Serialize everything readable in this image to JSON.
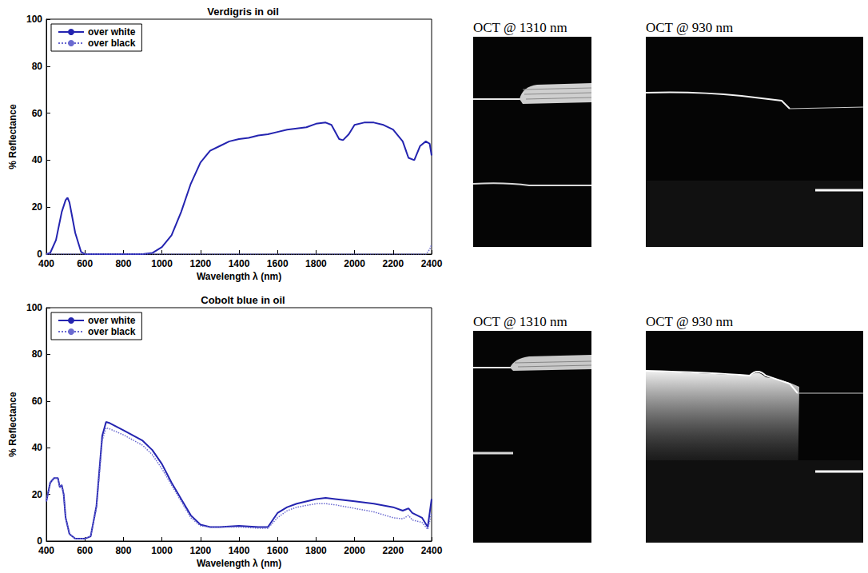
{
  "chart_data": [
    {
      "type": "line",
      "title": "Verdigris in oil",
      "x_label": "Wavelength λ (nm)",
      "y_label": "% Reflectance",
      "x": [
        400,
        420,
        450,
        480,
        500,
        510,
        520,
        550,
        580,
        600,
        700,
        800,
        900,
        950,
        1000,
        1050,
        1100,
        1150,
        1200,
        1250,
        1300,
        1350,
        1400,
        1450,
        1500,
        1550,
        1600,
        1650,
        1700,
        1750,
        1800,
        1850,
        1880,
        1920,
        1940,
        1970,
        2000,
        2050,
        2100,
        2150,
        2200,
        2250,
        2280,
        2310,
        2340,
        2370,
        2390,
        2400
      ],
      "series": [
        {
          "name": "over white",
          "color": "#2424b0",
          "line_style": "solid",
          "values": [
            0,
            0.5,
            6,
            18,
            23,
            24,
            22,
            9,
            1,
            0,
            0,
            0,
            0,
            0.5,
            3,
            8,
            18,
            30,
            39,
            44,
            46,
            48,
            49,
            49.5,
            50.5,
            51,
            52,
            53,
            53.5,
            54,
            55.5,
            56,
            55,
            49,
            48.5,
            51,
            55,
            56,
            56,
            55,
            53,
            48,
            41,
            40,
            46,
            48,
            47,
            42
          ]
        },
        {
          "name": "over black",
          "color": "#6a6ad0",
          "line_style": "dotted",
          "values": [
            0,
            0,
            0,
            0,
            0,
            0,
            0,
            0,
            0,
            0,
            0,
            0,
            0,
            0,
            0,
            0,
            0,
            0,
            0,
            0,
            0,
            0,
            0,
            0,
            0,
            0,
            0,
            0,
            0,
            0,
            0,
            0,
            0,
            0,
            0,
            0,
            0,
            0,
            0,
            0,
            0,
            0,
            0,
            0,
            0,
            0,
            2,
            4
          ]
        }
      ],
      "xlim": [
        400,
        2400
      ],
      "xticks": [
        400,
        600,
        800,
        1000,
        1200,
        1400,
        1600,
        1800,
        2000,
        2200,
        2400
      ],
      "ylim": [
        0,
        100
      ],
      "yticks": [
        0,
        20,
        40,
        60,
        80,
        100
      ],
      "grid": false,
      "legend": "upper left"
    },
    {
      "type": "line",
      "title": "Cobolt blue in oil",
      "x_label": "Wavelength λ (nm)",
      "y_label": "% Reflectance",
      "x": [
        400,
        420,
        440,
        460,
        470,
        480,
        490,
        500,
        520,
        550,
        600,
        630,
        660,
        690,
        710,
        730,
        800,
        900,
        950,
        1000,
        1050,
        1100,
        1150,
        1200,
        1250,
        1300,
        1400,
        1500,
        1550,
        1600,
        1650,
        1700,
        1800,
        1850,
        1900,
        2000,
        2100,
        2200,
        2250,
        2280,
        2300,
        2350,
        2380,
        2400
      ],
      "series": [
        {
          "name": "over white",
          "color": "#2424b0",
          "line_style": "solid",
          "values": [
            17,
            25,
            27,
            27,
            23,
            24,
            20,
            10,
            3,
            1,
            1,
            2,
            15,
            45,
            51,
            50.5,
            47.5,
            43,
            39,
            33,
            25,
            18,
            11,
            7,
            6,
            6,
            6.5,
            6,
            6,
            12,
            14.5,
            16,
            18,
            18.5,
            18,
            17,
            16,
            14.5,
            13,
            14,
            12,
            10,
            6,
            18
          ]
        },
        {
          "name": "over black",
          "color": "#6a6ad0",
          "line_style": "dotted",
          "values": [
            17,
            25,
            27,
            27,
            23,
            24,
            20,
            10,
            3,
            1,
            1,
            2,
            14,
            43,
            48.5,
            48,
            45.5,
            41,
            37,
            31,
            24,
            17,
            10,
            6.5,
            6,
            6,
            6,
            5.5,
            5.5,
            10,
            13,
            14.5,
            16,
            16,
            15.5,
            14,
            12.5,
            10,
            9.5,
            11,
            9,
            8,
            5,
            12
          ]
        }
      ],
      "xlim": [
        400,
        2400
      ],
      "xticks": [
        400,
        600,
        800,
        1000,
        1200,
        1400,
        1600,
        1800,
        2000,
        2200,
        2400
      ],
      "ylim": [
        0,
        100
      ],
      "yticks": [
        0,
        20,
        40,
        60,
        80,
        100
      ],
      "grid": false,
      "legend": "upper left"
    }
  ],
  "images": [
    {
      "title": "OCT @ 1310 nm"
    },
    {
      "title": "OCT @ 930 nm"
    },
    {
      "title": "OCT @ 1310 nm"
    },
    {
      "title": "OCT @ 930 nm"
    }
  ]
}
